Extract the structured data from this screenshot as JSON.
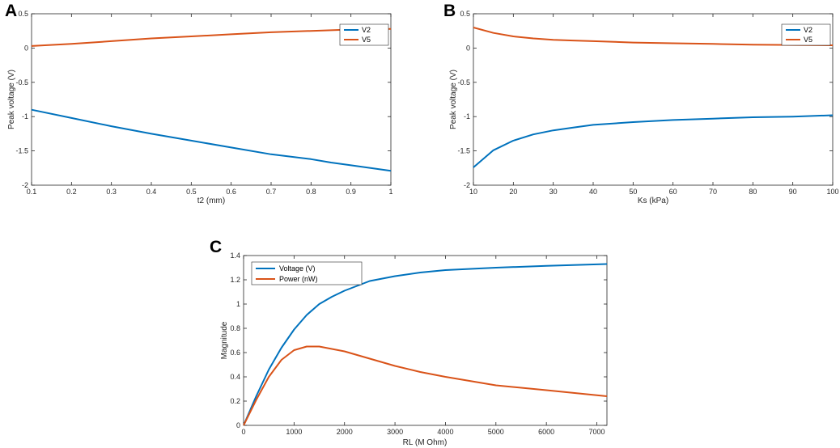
{
  "colors": {
    "blue": "#0072BD",
    "orange": "#D95319",
    "axis": "#262626"
  },
  "chart_data": [
    {
      "panel": "A",
      "type": "line",
      "title": "",
      "xlabel": "t2 (mm)",
      "ylabel": "Peak voltage (V)",
      "xlim": [
        0.1,
        1
      ],
      "ylim": [
        -2,
        0.5
      ],
      "xticks": [
        0.1,
        0.2,
        0.3,
        0.4,
        0.5,
        0.6,
        0.7,
        0.8,
        0.9,
        1
      ],
      "xtick_labels": [
        "0.1",
        "0.2",
        "0.3",
        "0.4",
        "0.5",
        "0.6",
        "0.7",
        "0.8",
        "0.9",
        "1"
      ],
      "yticks": [
        -2,
        -1.5,
        -1,
        -0.5,
        0,
        0.5
      ],
      "ytick_labels": [
        "-2",
        "-1.5",
        "-1",
        "-0.5",
        "0",
        "0.5"
      ],
      "legend_position": "top-right",
      "series": [
        {
          "name": "V2",
          "color": "#0072BD",
          "x": [
            0.1,
            0.2,
            0.3,
            0.4,
            0.5,
            0.6,
            0.7,
            0.8,
            0.85,
            0.9,
            1.0
          ],
          "y": [
            -0.9,
            -1.02,
            -1.14,
            -1.25,
            -1.35,
            -1.45,
            -1.55,
            -1.62,
            -1.67,
            -1.71,
            -1.79
          ]
        },
        {
          "name": "V5",
          "color": "#D95319",
          "x": [
            0.1,
            0.2,
            0.3,
            0.4,
            0.5,
            0.6,
            0.7,
            0.8,
            0.9,
            1.0
          ],
          "y": [
            0.03,
            0.06,
            0.1,
            0.14,
            0.17,
            0.2,
            0.23,
            0.25,
            0.27,
            0.28
          ]
        }
      ]
    },
    {
      "panel": "B",
      "type": "line",
      "title": "",
      "xlabel": "Ks (kPa)",
      "ylabel": "Peak voltage (V)",
      "xlim": [
        10,
        100
      ],
      "ylim": [
        -2,
        0.5
      ],
      "xticks": [
        10,
        20,
        30,
        40,
        50,
        60,
        70,
        80,
        90,
        100
      ],
      "xtick_labels": [
        "10",
        "20",
        "30",
        "40",
        "50",
        "60",
        "70",
        "80",
        "90",
        "100"
      ],
      "yticks": [
        -2,
        -1.5,
        -1,
        -0.5,
        0,
        0.5
      ],
      "ytick_labels": [
        "-2",
        "-1.5",
        "-1",
        "-0.5",
        "0",
        "0.5"
      ],
      "legend_position": "top-right",
      "series": [
        {
          "name": "V2",
          "color": "#0072BD",
          "x": [
            10,
            15,
            20,
            25,
            30,
            35,
            40,
            50,
            60,
            70,
            80,
            90,
            100
          ],
          "y": [
            -1.74,
            -1.49,
            -1.35,
            -1.26,
            -1.2,
            -1.16,
            -1.12,
            -1.08,
            -1.05,
            -1.03,
            -1.01,
            -1.0,
            -0.98
          ]
        },
        {
          "name": "V5",
          "color": "#D95319",
          "x": [
            10,
            15,
            20,
            25,
            30,
            35,
            40,
            50,
            60,
            70,
            80,
            90,
            100
          ],
          "y": [
            0.3,
            0.22,
            0.17,
            0.14,
            0.12,
            0.11,
            0.1,
            0.08,
            0.07,
            0.06,
            0.05,
            0.045,
            0.04
          ]
        }
      ]
    },
    {
      "panel": "C",
      "type": "line",
      "title": "",
      "xlabel": "RL (M Ohm)",
      "ylabel": "Magnitude",
      "xlim": [
        0,
        7200
      ],
      "ylim": [
        0,
        1.4
      ],
      "xticks": [
        0,
        1000,
        2000,
        3000,
        4000,
        5000,
        6000,
        7000
      ],
      "xtick_labels": [
        "0",
        "1000",
        "2000",
        "3000",
        "4000",
        "5000",
        "6000",
        "7000"
      ],
      "yticks": [
        0,
        0.2,
        0.4,
        0.6,
        0.8,
        1,
        1.2,
        1.4
      ],
      "ytick_labels": [
        "0",
        "0.2",
        "0.4",
        "0.6",
        "0.8",
        "1",
        "1.2",
        "1.4"
      ],
      "legend_position": "top-left",
      "series": [
        {
          "name": "Voltage (V)",
          "color": "#0072BD",
          "x": [
            0,
            250,
            500,
            750,
            1000,
            1250,
            1500,
            1750,
            2000,
            2500,
            3000,
            3500,
            4000,
            5000,
            6000,
            7200
          ],
          "y": [
            0,
            0.24,
            0.46,
            0.64,
            0.79,
            0.91,
            1.0,
            1.06,
            1.11,
            1.19,
            1.23,
            1.26,
            1.28,
            1.3,
            1.315,
            1.33
          ]
        },
        {
          "name": "Power (nW)",
          "color": "#D95319",
          "x": [
            0,
            250,
            500,
            750,
            1000,
            1250,
            1500,
            1750,
            2000,
            2500,
            3000,
            3500,
            4000,
            5000,
            6000,
            7200
          ],
          "y": [
            0,
            0.21,
            0.4,
            0.54,
            0.62,
            0.65,
            0.65,
            0.63,
            0.61,
            0.55,
            0.49,
            0.44,
            0.4,
            0.33,
            0.29,
            0.24
          ]
        }
      ]
    }
  ]
}
